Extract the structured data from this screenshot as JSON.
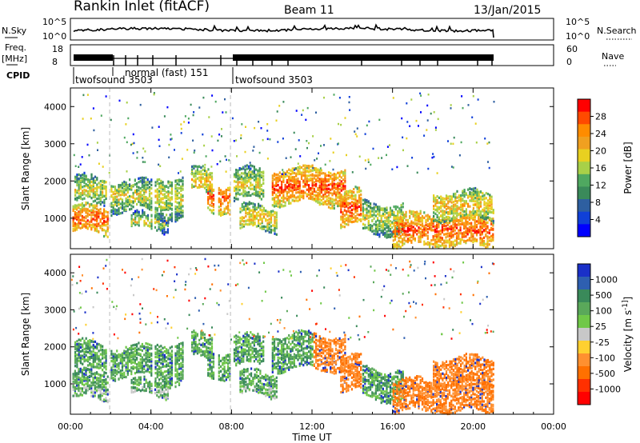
{
  "header": {
    "station": "Rankin Inlet (fitACF)",
    "beam": "Beam 11",
    "date": "13/Jan/2015"
  },
  "strips": {
    "nsky_label": "N.Sky",
    "nsky_ticks": [
      "10^5",
      "10^0"
    ],
    "nsearch_label": "N.Search",
    "nsearch_ticks": [
      "10^5",
      "10^0"
    ],
    "freq_label_1": "Freq.",
    "freq_label_2": "[MHz]",
    "freq_ticks": [
      "18",
      "8"
    ],
    "nave_label": "Nave",
    "nave_ticks": [
      "60",
      "0"
    ],
    "cpid_label": "CPID",
    "cpid_programs": [
      {
        "name": "twofsound 3503",
        "start": 0.0,
        "end": 1.95
      },
      {
        "name": "normal (fast) 151",
        "start": 1.95,
        "end": 8.0
      },
      {
        "name": "twofsound 3503",
        "start": 8.0,
        "end": 21.0
      }
    ]
  },
  "chart_data": [
    {
      "type": "heatmap",
      "name": "power-panel",
      "ylabel": "Slant Range [km]",
      "yticks": [
        1000,
        2000,
        3000,
        4000
      ],
      "ylim": [
        180,
        4500
      ],
      "xlim": [
        0,
        24
      ],
      "colorbar": {
        "label": "Power [dB]",
        "ticks": [
          "28",
          "24",
          "20",
          "16",
          "12",
          "8",
          "4"
        ],
        "colors": [
          "#ff0000",
          "#ff4a00",
          "#ff8c00",
          "#f0a020",
          "#e8d020",
          "#a8d048",
          "#4fa860",
          "#3a8a5a",
          "#2e5fa0",
          "#1040d8",
          "#0000ff"
        ]
      }
    },
    {
      "type": "heatmap",
      "name": "velocity-panel",
      "ylabel": "Slant Range [km]",
      "yticks": [
        1000,
        2000,
        3000,
        4000
      ],
      "ylim": [
        180,
        4500
      ],
      "xlim": [
        0,
        24
      ],
      "colorbar": {
        "label": "Velocity [m s^-1]",
        "ticks": [
          "1000",
          "500",
          "100",
          "25",
          "-25",
          "-100",
          "-500",
          "-1000"
        ],
        "colors": [
          "#1a30c8",
          "#2e5fb0",
          "#3a8a5a",
          "#5aa85a",
          "#70c848",
          "#c8c8c8",
          "#ffd030",
          "#ff9030",
          "#ff7000",
          "#ff3000",
          "#ff0000"
        ]
      }
    }
  ],
  "xaxis": {
    "label": "Time UT",
    "ticks": [
      "00:00",
      "04:00",
      "08:00",
      "12:00",
      "16:00",
      "20:00",
      "00:00"
    ],
    "tick_hours": [
      0,
      4,
      8,
      12,
      16,
      20,
      24
    ]
  }
}
